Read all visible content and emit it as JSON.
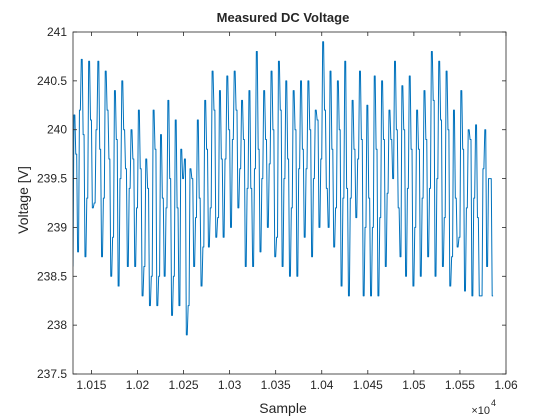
{
  "chart_data": {
    "type": "line",
    "title": "Measured DC Voltage",
    "xlabel": "Sample",
    "ylabel": "Voltage [V]",
    "x_exponent_label": "×10",
    "x_exponent_power": "4",
    "xlim": [
      10130,
      10600
    ],
    "ylim": [
      237.5,
      241
    ],
    "x_ticks": [
      10150,
      10200,
      10250,
      10300,
      10350,
      10400,
      10450,
      10500,
      10550,
      10600
    ],
    "x_tick_labels": [
      "1.015",
      "1.02",
      "1.025",
      "1.03",
      "1.035",
      "1.04",
      "1.045",
      "1.05",
      "1.055",
      "1.06"
    ],
    "y_ticks": [
      237.5,
      238,
      238.5,
      239,
      239.5,
      240,
      240.5,
      241
    ],
    "y_tick_labels": [
      "237.5",
      "238",
      "238.5",
      "239",
      "239.5",
      "240",
      "240.5",
      "241"
    ],
    "grid": false,
    "line_color": "#0072BD",
    "series": [
      {
        "x_start": 10130,
        "x_step": 1,
        "values": [
          238.6,
          240.15,
          240.15,
          239.75,
          239.75,
          238.75,
          238.75,
          240.2,
          240.2,
          240.72,
          240.72,
          239.95,
          239.95,
          238.7,
          238.7,
          239.3,
          239.3,
          240.7,
          240.7,
          240.1,
          240.1,
          239.2,
          239.2,
          239.25,
          239.25,
          240.0,
          240.0,
          240.7,
          240.7,
          239.8,
          239.8,
          238.7,
          238.7,
          239.3,
          239.3,
          240.6,
          240.6,
          240.2,
          240.2,
          239.7,
          239.7,
          238.5,
          238.5,
          238.9,
          238.9,
          240.4,
          240.4,
          239.9,
          239.9,
          238.4,
          238.4,
          239.5,
          239.5,
          240.5,
          240.5,
          240.0,
          240.0,
          239.6,
          239.6,
          238.6,
          238.6,
          239.4,
          239.4,
          240.0,
          240.0,
          239.7,
          239.7,
          238.6,
          238.6,
          239.2,
          239.2,
          240.2,
          240.2,
          239.6,
          239.6,
          238.3,
          238.3,
          238.6,
          238.6,
          239.7,
          239.7,
          239.4,
          239.4,
          238.2,
          238.2,
          238.5,
          238.5,
          240.2,
          240.2,
          239.8,
          239.8,
          238.2,
          238.2,
          238.5,
          238.5,
          239.95,
          239.95,
          239.3,
          239.3,
          238.5,
          238.5,
          239.2,
          239.2,
          240.3,
          240.3,
          239.5,
          239.5,
          238.1,
          238.1,
          238.5,
          238.5,
          240.1,
          240.1,
          239.2,
          239.2,
          238.2,
          238.2,
          239.8,
          239.8,
          239.5,
          239.5,
          239.7,
          239.7,
          237.9,
          237.9,
          238.2,
          238.2,
          239.6,
          239.6,
          239.5,
          239.5,
          238.6,
          238.6,
          239.1,
          239.1,
          240.1,
          240.1,
          239.3,
          239.3,
          238.4,
          238.4,
          238.8,
          238.8,
          240.3,
          240.3,
          239.8,
          239.8,
          238.8,
          238.8,
          239.2,
          239.2,
          240.6,
          240.6,
          240.2,
          240.2,
          238.9,
          238.9,
          239.1,
          239.1,
          240.4,
          240.4,
          239.7,
          239.7,
          238.9,
          238.9,
          239.7,
          239.7,
          240.55,
          240.55,
          240.0,
          240.0,
          239.0,
          239.0,
          239.9,
          239.9,
          240.6,
          240.6,
          240.2,
          240.2,
          239.2,
          239.2,
          239.6,
          239.6,
          240.3,
          240.3,
          239.9,
          239.9,
          238.6,
          238.6,
          239.4,
          239.4,
          240.4,
          240.4,
          239.4,
          239.4,
          238.6,
          238.6,
          239.6,
          239.6,
          240.8,
          240.8,
          239.8,
          239.8,
          238.75,
          238.75,
          239.5,
          239.5,
          240.4,
          240.4,
          239.9,
          239.9,
          239.0,
          239.0,
          239.65,
          239.65,
          240.6,
          240.6,
          240.0,
          240.0,
          238.7,
          238.7,
          238.9,
          238.9,
          240.7,
          240.7,
          240.2,
          240.2,
          238.6,
          238.6,
          239.5,
          239.5,
          240.5,
          240.5,
          239.7,
          239.7,
          238.5,
          238.5,
          239.2,
          239.2,
          240.4,
          240.4,
          240.0,
          240.0,
          238.5,
          238.5,
          239.6,
          239.6,
          240.5,
          240.5,
          239.8,
          239.8,
          238.9,
          238.9,
          239.6,
          239.6,
          240.5,
          240.5,
          240.0,
          240.0,
          238.7,
          238.7,
          239.5,
          239.5,
          240.2,
          240.2,
          240.1,
          240.1,
          239.0,
          239.0,
          239.7,
          239.7,
          240.9,
          240.9,
          240.2,
          240.2,
          239.4,
          239.4,
          239.0,
          239.0,
          240.6,
          240.6,
          239.8,
          239.8,
          238.8,
          238.8,
          239.2,
          239.2,
          240.5,
          240.5,
          240.0,
          240.0,
          238.4,
          238.4,
          239.3,
          239.3,
          240.7,
          240.7,
          239.4,
          239.4,
          238.3,
          238.3,
          239.3,
          239.3,
          240.3,
          240.3,
          239.8,
          239.8,
          239.1,
          239.1,
          239.7,
          239.7,
          240.6,
          240.6,
          239.9,
          239.9,
          238.3,
          238.3,
          239.0,
          239.0,
          240.25,
          240.25,
          239.3,
          239.3,
          238.3,
          238.3,
          239.0,
          239.0,
          240.55,
          240.55,
          239.8,
          239.8,
          238.3,
          238.3,
          239.1,
          239.1,
          240.5,
          240.5,
          239.9,
          239.9,
          238.6,
          238.6,
          239.35,
          239.35,
          240.2,
          240.2,
          239.9,
          239.9,
          239.5,
          239.5,
          240.7,
          240.7,
          240.0,
          240.0,
          239.2,
          239.2,
          238.7,
          238.7,
          240.45,
          240.45,
          240.0,
          240.0,
          238.5,
          238.5,
          239.4,
          239.4,
          240.55,
          240.55,
          239.8,
          239.8,
          238.4,
          238.4,
          239.0,
          239.0,
          240.2,
          240.2,
          239.8,
          239.8,
          238.5,
          238.5,
          239.3,
          239.3,
          240.4,
          240.4,
          239.9,
          239.9,
          238.7,
          238.7,
          239.4,
          239.4,
          240.8,
          240.8,
          240.3,
          240.3,
          238.5,
          238.5,
          239.5,
          239.5,
          240.7,
          240.7,
          240.1,
          240.1,
          238.6,
          238.6,
          239.1,
          239.1,
          240.6,
          240.6,
          240.0,
          240.0,
          238.4,
          238.4,
          238.7,
          238.7,
          240.2,
          240.2,
          239.3,
          239.3,
          238.8,
          238.8,
          238.9,
          238.9,
          240.4,
          240.4,
          239.8,
          239.8,
          238.35,
          238.35,
          239.2,
          239.2,
          240.0,
          240.0,
          239.9,
          239.9,
          238.3,
          238.3,
          239.3,
          239.3,
          240.05,
          240.05,
          239.1,
          239.1,
          238.3,
          238.3,
          238.3,
          238.3,
          239.6,
          239.6,
          240.0,
          240.0,
          238.6,
          238.6,
          239.5,
          239.5,
          239.5,
          239.5,
          238.3,
          238.3
        ]
      }
    ]
  }
}
